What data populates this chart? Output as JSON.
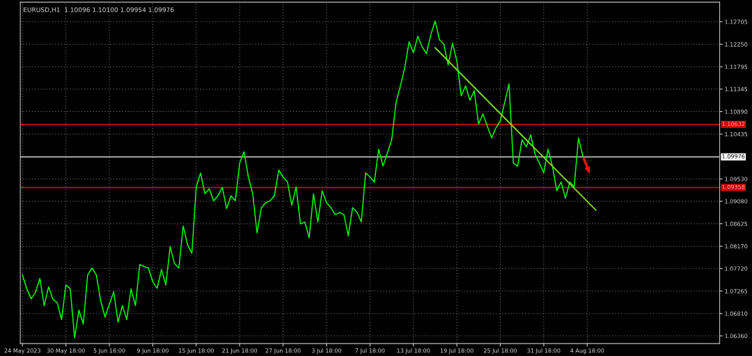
{
  "chart_data": {
    "type": "line",
    "title": "EURUSD,H1  1.10096 1.10100 1.09954 1.09976",
    "categories": [
      "24 May 2023",
      null,
      null,
      null,
      null,
      null,
      null,
      null,
      null,
      null,
      "30 May 18:00",
      null,
      null,
      null,
      null,
      null,
      null,
      null,
      null,
      null,
      "5 Jun 18:00",
      null,
      null,
      null,
      null,
      null,
      null,
      null,
      null,
      null,
      "9 Jun 18:00",
      null,
      null,
      null,
      null,
      null,
      null,
      null,
      null,
      null,
      "15 Jun 18:00",
      null,
      null,
      null,
      null,
      null,
      null,
      null,
      null,
      null,
      "21 Jun 18:00",
      null,
      null,
      null,
      null,
      null,
      null,
      null,
      null,
      null,
      "27 Jun 18:00",
      null,
      null,
      null,
      null,
      null,
      null,
      null,
      null,
      null,
      "3 Jul 18:00",
      null,
      null,
      null,
      null,
      null,
      null,
      null,
      null,
      null,
      "7 Jul 18:00",
      null,
      null,
      null,
      null,
      null,
      null,
      null,
      null,
      null,
      "13 Jul 18:00",
      null,
      null,
      null,
      null,
      null,
      null,
      null,
      null,
      null,
      "19 Jul 18:00",
      null,
      null,
      null,
      null,
      null,
      null,
      null,
      null,
      null,
      "25 Jul 18:00",
      null,
      null,
      null,
      null,
      null,
      null,
      null,
      null,
      null,
      "31 Jul 18:00",
      null,
      null,
      null,
      null,
      null,
      null,
      null,
      null,
      null,
      "4 Aug 18:00",
      null,
      null,
      null,
      null,
      null,
      null,
      null,
      null,
      null,
      null,
      null,
      null,
      null,
      null,
      null,
      null,
      null,
      null,
      null,
      null,
      null,
      null,
      null,
      null,
      null,
      null,
      null,
      null,
      null,
      null
    ],
    "series": [
      {
        "color": "#00ff00",
        "values": [
          1.0759,
          1.0731,
          1.0711,
          1.0724,
          1.0752,
          1.0697,
          1.0735,
          1.071,
          1.0703,
          1.0669,
          1.0739,
          1.0731,
          1.0632,
          1.0688,
          1.066,
          1.0759,
          1.0773,
          1.0759,
          1.0707,
          1.0674,
          1.07,
          1.0725,
          1.0664,
          1.0697,
          1.0669,
          1.0731,
          1.0697,
          1.078,
          1.0776,
          1.0773,
          1.0745,
          1.0732,
          1.077,
          1.0739,
          1.0816,
          1.0782,
          1.0773,
          1.0858,
          1.082,
          1.0803,
          1.0937,
          1.0965,
          1.0923,
          1.0933,
          1.0909,
          1.0919,
          1.0936,
          1.0893,
          1.0919,
          1.0909,
          1.0985,
          1.1008,
          1.0957,
          1.0923,
          1.0844,
          1.0895,
          1.0905,
          1.0909,
          1.0919,
          1.0971,
          1.0957,
          1.0947,
          1.09,
          1.0937,
          1.0862,
          1.0866,
          1.0834,
          1.0923,
          1.0866,
          1.0929,
          1.0905,
          1.0895,
          1.0881,
          1.0885,
          1.0881,
          1.0838,
          1.0895,
          1.0886,
          1.0866,
          1.0965,
          1.0957,
          1.0947,
          1.1013,
          1.0979,
          1.1005,
          1.1032,
          1.1107,
          1.1141,
          1.1177,
          1.123,
          1.1208,
          1.1241,
          1.122,
          1.1206,
          1.1244,
          1.1272,
          1.1234,
          1.1225,
          1.1183,
          1.1227,
          1.1191,
          1.1121,
          1.1141,
          1.1112,
          1.1131,
          1.1064,
          1.1084,
          1.106,
          1.1036,
          1.1056,
          1.107,
          1.1107,
          1.1145,
          1.0985,
          1.0979,
          1.1032,
          1.1018,
          1.1042,
          1.1003,
          1.0985,
          1.0965,
          1.1013,
          1.0979,
          1.0929,
          1.0947,
          1.0914,
          1.0947,
          1.0937,
          1.1036,
          1.0999,
          null,
          null,
          null,
          null,
          null,
          null,
          null,
          null,
          null,
          null,
          null,
          null,
          null,
          null,
          null,
          null,
          null,
          null,
          null,
          null,
          null,
          null,
          null,
          null,
          null,
          null,
          null,
          null,
          null,
          null,
          null
        ]
      },
      {
        "color": "#80e020",
        "values": [
          null,
          null,
          null,
          null,
          null,
          null,
          null,
          null,
          null,
          null,
          null,
          null,
          null,
          null,
          null,
          null,
          null,
          null,
          null,
          null,
          null,
          null,
          null,
          null,
          null,
          null,
          null,
          null,
          null,
          null,
          null,
          null,
          null,
          null,
          null,
          null,
          null,
          null,
          null,
          null,
          null,
          null,
          null,
          null,
          null,
          null,
          null,
          null,
          null,
          null,
          null,
          null,
          null,
          null,
          null,
          null,
          null,
          null,
          null,
          null,
          null,
          null,
          null,
          null,
          null,
          null,
          null,
          null,
          null,
          null,
          null,
          null,
          null,
          null,
          null,
          null,
          null,
          null,
          null,
          null,
          null,
          null,
          null,
          null,
          null,
          null,
          null,
          null,
          null,
          null,
          null,
          null,
          null,
          null,
          null,
          1.1218,
          null,
          null,
          null,
          null,
          null,
          null,
          null,
          null,
          null,
          null,
          null,
          null,
          null,
          null,
          null,
          null,
          null,
          null,
          null,
          null,
          null,
          null,
          null,
          null,
          null,
          null,
          null,
          null,
          null,
          null,
          null,
          null,
          null,
          null,
          null,
          null,
          1.089,
          null,
          null,
          null,
          null,
          null,
          null,
          null,
          null,
          null,
          null,
          null,
          null,
          null,
          null,
          null,
          null,
          null,
          null,
          null,
          null,
          null,
          null,
          null,
          null,
          null,
          null,
          null,
          null
        ]
      }
    ],
    "ylim": [
      1.06205,
      1.13101
    ],
    "yticks": [
      {
        "value": 1.0636,
        "label": "1.06360"
      },
      {
        "value": 1.0681,
        "label": "1.06810"
      },
      {
        "value": 1.07265,
        "label": "1.07265"
      },
      {
        "value": 1.0772,
        "label": "1.07720"
      },
      {
        "value": 1.0817,
        "label": "1.08170"
      },
      {
        "value": 1.08625,
        "label": "1.08625"
      },
      {
        "value": 1.0908,
        "label": "1.09080"
      },
      {
        "value": 1.0953,
        "label": "1.09530"
      },
      {
        "value": 1.10435,
        "label": "1.10435"
      },
      {
        "value": 1.1089,
        "label": "1.10890"
      },
      {
        "value": 1.11345,
        "label": "1.11345"
      },
      {
        "value": 1.11795,
        "label": "1.11795"
      },
      {
        "value": 1.1225,
        "label": "1.12250"
      },
      {
        "value": 1.12705,
        "label": "1.12705"
      }
    ],
    "ref_lines": [
      {
        "axis": "y",
        "value": 1.10632,
        "label": "1.10632",
        "color": "#d40000"
      },
      {
        "axis": "y",
        "value": 1.09976,
        "label": "1.09976",
        "color": "#c0c0c0"
      },
      {
        "axis": "y",
        "value": 1.09358,
        "label": "1.09358",
        "color": "#d40000"
      }
    ],
    "grid": true,
    "line_style": "solid"
  }
}
